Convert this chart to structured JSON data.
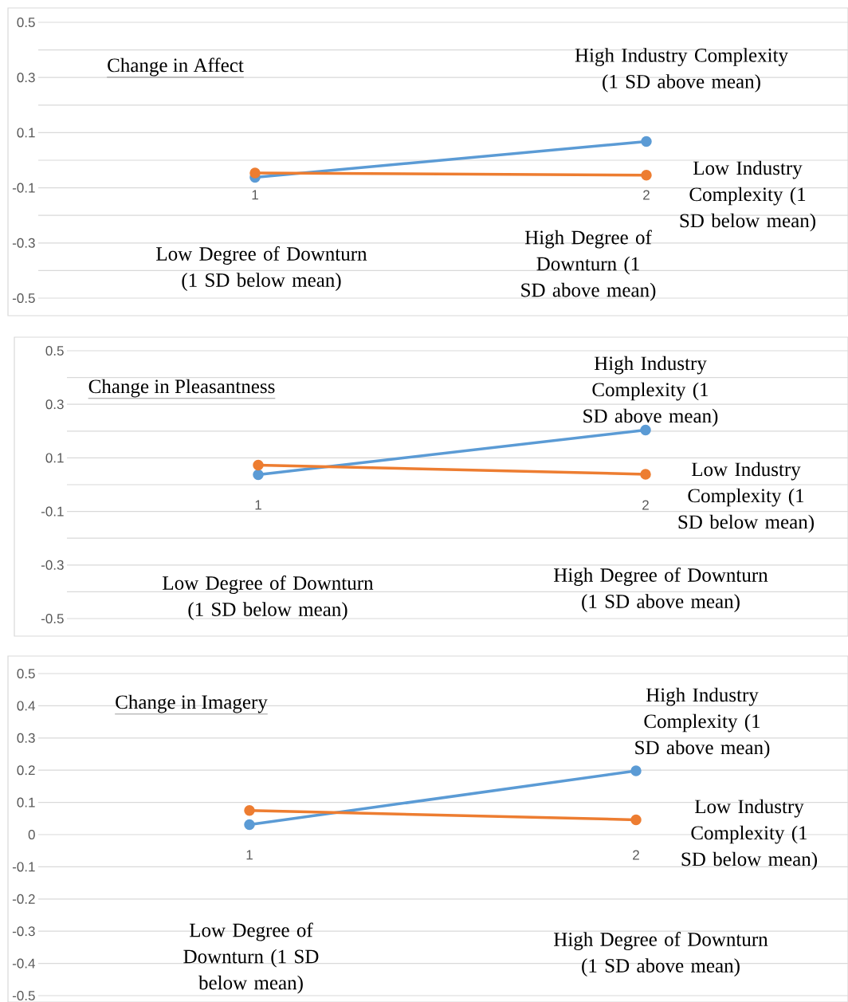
{
  "chart_data": [
    {
      "type": "line",
      "title": "Change in Affect",
      "categories": [
        "1",
        "2"
      ],
      "series": [
        {
          "name": "High Industry Complexity (1 SD above mean)",
          "color": "#5b9bd5",
          "values": [
            -0.062,
            0.068
          ]
        },
        {
          "name": "Low Industry Complexity (1 SD below mean)",
          "color": "#ed7d31",
          "values": [
            -0.046,
            -0.054
          ]
        }
      ],
      "annotations": [
        "Low Degree of Downturn (1 SD below mean)",
        "High Degree of Downturn (1 SD above mean)"
      ],
      "ylim": [
        -0.5,
        0.5
      ],
      "yticks": [
        -0.5,
        {
          "value": -0.4,
          "label": null
        },
        -0.3,
        {
          "value": -0.2,
          "label": null
        },
        -0.1,
        {
          "value": 0,
          "label": null
        },
        0.1,
        {
          "value": 0.2,
          "label": null
        },
        0.3,
        {
          "value": 0.4,
          "label": null
        },
        0.5
      ],
      "grid": "y",
      "marker": "circle",
      "line_style": "solid"
    },
    {
      "type": "line",
      "title": "Change in Pleasantness",
      "categories": [
        "1",
        "2"
      ],
      "series": [
        {
          "name": "High Industry Complexity (1 SD above mean)",
          "color": "#5b9bd5",
          "values": [
            0.037,
            0.204
          ]
        },
        {
          "name": "Low Industry Complexity (1 SD below mean)",
          "color": "#ed7d31",
          "values": [
            0.073,
            0.039
          ]
        }
      ],
      "annotations": [
        "Low Degree of Downturn (1 SD below mean)",
        "High Degree of Downturn (1 SD above mean)"
      ],
      "ylim": [
        -0.5,
        0.5
      ],
      "yticks": [
        -0.5,
        {
          "value": -0.4,
          "label": null
        },
        -0.3,
        {
          "value": -0.2,
          "label": null
        },
        -0.1,
        {
          "value": 0,
          "label": null
        },
        0.1,
        {
          "value": 0.2,
          "label": null
        },
        0.3,
        {
          "value": 0.4,
          "label": null
        },
        0.5
      ],
      "grid": "y",
      "marker": "circle",
      "line_style": "solid"
    },
    {
      "type": "line",
      "title": "Change in Imagery",
      "categories": [
        "1",
        "2"
      ],
      "series": [
        {
          "name": "High Industry Complexity (1 SD above mean)",
          "color": "#5b9bd5",
          "values": [
            0.031,
            0.198
          ]
        },
        {
          "name": "Low Industry Complexity (1 SD below mean)",
          "color": "#ed7d31",
          "values": [
            0.075,
            0.046
          ]
        }
      ],
      "annotations": [
        "Low Degree of Downturn (1 SD below mean)",
        "High Degree of Downturn (1 SD above mean)"
      ],
      "ylim": [
        -0.5,
        0.5
      ],
      "yticks": [
        -0.5,
        -0.4,
        -0.3,
        -0.2,
        -0.1,
        0,
        0.1,
        0.2,
        0.3,
        0.4,
        0.5
      ],
      "grid": "y",
      "marker": "circle",
      "line_style": "solid"
    }
  ]
}
